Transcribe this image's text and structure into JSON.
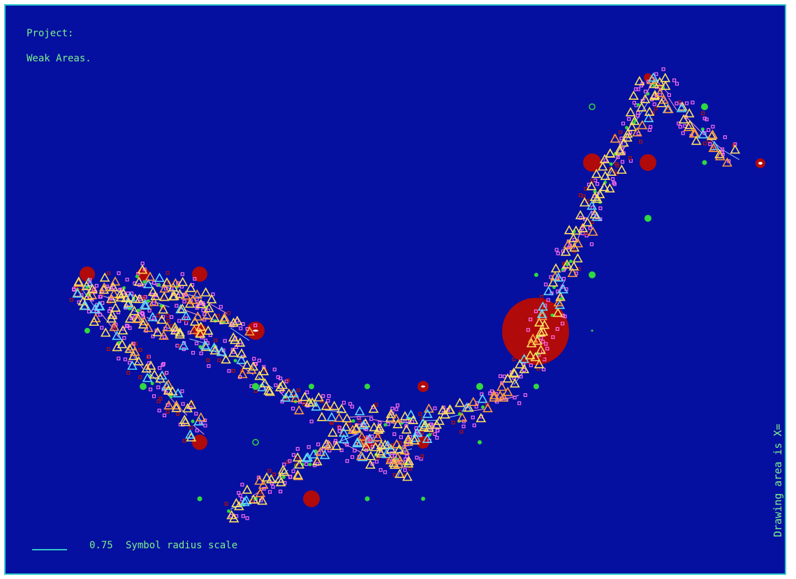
{
  "header": {
    "project_label": "Project:",
    "subtitle": "Weak Areas."
  },
  "side_label": "Drawing area is X=",
  "scale": {
    "value": "0.75",
    "text": "Symbol radius scale"
  },
  "colors": {
    "background": "#0510a0",
    "frame": "#2fc8c8",
    "label_text": "#7cf08c",
    "weak_area_fill": "#b00a0a",
    "triangle_yellow": "#ffe060",
    "triangle_orange": "#ff9a40",
    "triangle_cyan": "#60d8ff",
    "square_magenta": "#ff6cf0",
    "square_darkred": "#b01010",
    "line_pink": "#ffa0c8",
    "line_lightblue": "#a0c8ff",
    "marker_green": "#30d840"
  },
  "symbols": [
    "triangle",
    "square",
    "circle",
    "arrow-line"
  ]
}
